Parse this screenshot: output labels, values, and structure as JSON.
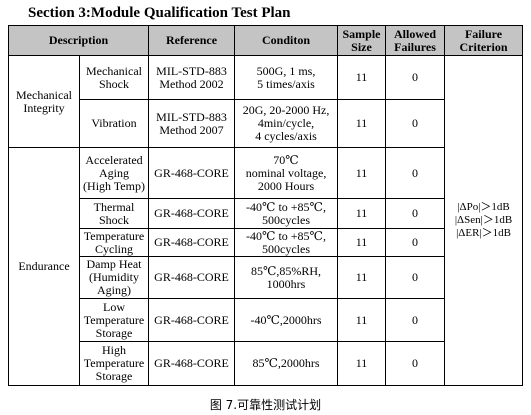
{
  "title": "Section 3:Module Qualification Test Plan",
  "table": {
    "headers": [
      "Description",
      "Reference",
      "Conditon",
      "Sample\nSize",
      "Allowed\nFailures",
      "Failure\nCriterion"
    ],
    "groups": [
      {
        "name": "Mechanical\nIntegrity",
        "rows": [
          {
            "test": "Mechanical\nShock",
            "reference": "MIL-STD-883\nMethod 2002",
            "condition": "500G, 1 ms,\n5 times/axis",
            "sample_size": 11,
            "allowed_failures": 0
          },
          {
            "test": "Vibration",
            "reference": "MIL-STD-883\nMethod 2007",
            "condition": "20G, 20-2000 Hz,\n4min/cycle,\n4 cycles/axis",
            "sample_size": 11,
            "allowed_failures": 0
          }
        ]
      },
      {
        "name": "Endurance",
        "rows": [
          {
            "test": "Accelerated\nAging\n(High Temp)",
            "reference": "GR-468-CORE",
            "condition": "70℃\nnominal voltage,\n2000 Hours",
            "sample_size": 11,
            "allowed_failures": 0
          },
          {
            "test": "Thermal\nShock",
            "reference": "GR-468-CORE",
            "condition": "-40℃ to +85℃,\n500cycles",
            "sample_size": 11,
            "allowed_failures": 0
          },
          {
            "test": "Temperature\nCycling",
            "reference": "GR-468-CORE",
            "condition": "-40℃ to +85℃,\n500cycles",
            "sample_size": 11,
            "allowed_failures": 0
          },
          {
            "test": "Damp Heat\n(Humidity\nAging)",
            "reference": "GR-468-CORE",
            "condition": "85℃,85%RH,\n1000hrs",
            "sample_size": 11,
            "allowed_failures": 0
          },
          {
            "test": "Low\nTemperature\nStorage",
            "reference": "GR-468-CORE",
            "condition": "-40℃,2000hrs",
            "sample_size": 11,
            "allowed_failures": 0
          },
          {
            "test": "High\nTemperature\nStorage",
            "reference": "GR-468-CORE",
            "condition": "85℃,2000hrs",
            "sample_size": 11,
            "allowed_failures": 0
          }
        ]
      }
    ],
    "failure_criterion": [
      "|ΔPo|＞1dB",
      "|ΔSen|＞1dB",
      "|ΔER|＞1dB"
    ]
  },
  "caption": "图 7.可靠性测试计划"
}
